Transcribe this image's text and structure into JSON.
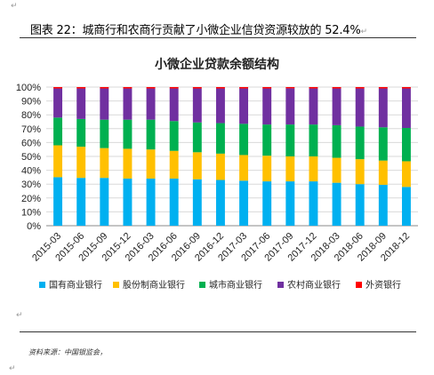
{
  "marks": {
    "return_mark": "↵"
  },
  "caption": {
    "label": "图表 22：",
    "text": "城商行和农商行贡献了小微企业信贷资源较放的 52.4%"
  },
  "source": {
    "text": "资料来源：中国银监会，"
  },
  "colors": {
    "series": [
      "#00B0F0",
      "#FFC000",
      "#00B050",
      "#7030A0",
      "#FF0000"
    ],
    "grid": "#d9d9d9",
    "axis": "#888888"
  },
  "chart_data": {
    "type": "bar",
    "stacked": true,
    "title": "小微企业贷款余额结构",
    "categories": [
      "2015-03",
      "2015-06",
      "2015-09",
      "2015-12",
      "2016-03",
      "2016-06",
      "2016-09",
      "2016-12",
      "2017-03",
      "2017-06",
      "2017-09",
      "2017-12",
      "2018-03",
      "2018-06",
      "2018-09",
      "2018-12"
    ],
    "ylim": [
      0,
      100
    ],
    "yticks": [
      "0%",
      "10%",
      "20%",
      "30%",
      "40%",
      "50%",
      "60%",
      "70%",
      "80%",
      "90%",
      "100%"
    ],
    "legend_position": "bottom",
    "series": [
      {
        "name": "国有商业银行",
        "values": [
          35,
          34.5,
          34.5,
          34,
          34,
          34,
          33.5,
          33,
          32.5,
          32,
          32,
          32,
          31,
          30,
          29.5,
          28
        ]
      },
      {
        "name": "股份制商业银行",
        "values": [
          23,
          22.5,
          21.5,
          21.5,
          21,
          20,
          19.5,
          19,
          18.5,
          18.5,
          18,
          18,
          18,
          18,
          17.5,
          18.5
        ]
      },
      {
        "name": "城市商业银行",
        "values": [
          20,
          20,
          20.5,
          21,
          21.5,
          21.5,
          21.5,
          22,
          22.5,
          22.5,
          23,
          23,
          23.5,
          23.5,
          24,
          24
        ]
      },
      {
        "name": "农村商业银行",
        "values": [
          21,
          22,
          22.5,
          22.5,
          22.5,
          23.5,
          24.5,
          25,
          25.5,
          26,
          26.1,
          26,
          26.5,
          27.5,
          28,
          28.5
        ]
      },
      {
        "name": "外资银行",
        "values": [
          1,
          1,
          1,
          1,
          1,
          1,
          1,
          1,
          1,
          1,
          0.9,
          1,
          1,
          1,
          1,
          1
        ]
      }
    ]
  }
}
